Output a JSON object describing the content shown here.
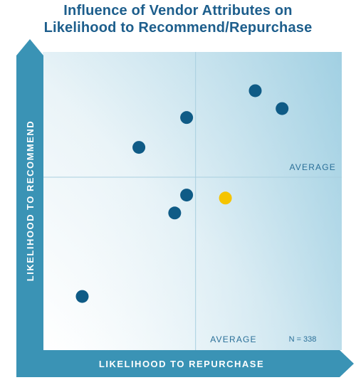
{
  "title_lines": [
    "Influence of Vendor Attributes on",
    "Likelihood to Recommend/Repurchase"
  ],
  "chart_data": {
    "type": "scatter",
    "title": "Influence of Vendor Attributes on Likelihood to Recommend/Repurchase",
    "xlabel": "LIKELIHOOD TO REPURCHASE",
    "ylabel": "LIKELIHOOD TO RECOMMEND",
    "xlim": [
      0,
      100
    ],
    "ylim": [
      0,
      100
    ],
    "x_average": 51,
    "y_average": 58,
    "average_label_x": "AVERAGE",
    "average_label_y": "AVERAGE",
    "n_label": "N = 338",
    "grid": false,
    "points": [
      {
        "x": 71,
        "y": 87,
        "color": "#0f5b86"
      },
      {
        "x": 80,
        "y": 81,
        "color": "#0f5b86"
      },
      {
        "x": 48,
        "y": 78,
        "color": "#0f5b86"
      },
      {
        "x": 32,
        "y": 68,
        "color": "#0f5b86"
      },
      {
        "x": 48,
        "y": 52,
        "color": "#0f5b86"
      },
      {
        "x": 61,
        "y": 51,
        "color": "#f5c400"
      },
      {
        "x": 44,
        "y": 46,
        "color": "#0f5b86"
      },
      {
        "x": 13,
        "y": 18,
        "color": "#0f5b86"
      }
    ]
  },
  "colors": {
    "axis_arrow": "#3a93b5",
    "title": "#1d5e8c",
    "point_default": "#0f5b86",
    "point_highlight": "#f5c400",
    "average_line": "#a9cfdf",
    "label_text": "#2a6f98"
  }
}
